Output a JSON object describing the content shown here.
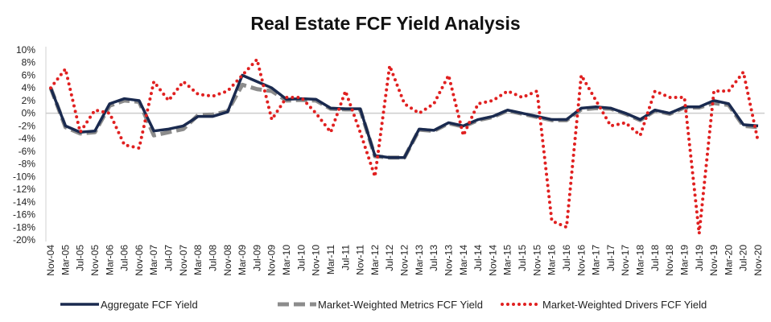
{
  "chart_data": {
    "type": "line",
    "title": "Real Estate FCF Yield Analysis",
    "xlabel": "",
    "ylabel": "",
    "ylim": [
      -20,
      10
    ],
    "y_ticks": [
      "10%",
      "8%",
      "6%",
      "4%",
      "2%",
      "0%",
      "-2%",
      "-4%",
      "-6%",
      "-8%",
      "-10%",
      "-12%",
      "-14%",
      "-16%",
      "-18%",
      "-20%"
    ],
    "grid": false,
    "legend_position": "bottom",
    "x": [
      "Nov-04",
      "Mar-05",
      "Jul-05",
      "Nov-05",
      "Mar-06",
      "Jul-06",
      "Nov-06",
      "Mar-07",
      "Jul-07",
      "Nov-07",
      "Mar-08",
      "Jul-08",
      "Nov-08",
      "Mar-09",
      "Jul-09",
      "Nov-09",
      "Mar-10",
      "Jul-10",
      "Nov-10",
      "Mar-11",
      "Jul-11",
      "Nov-11",
      "Mar-12",
      "Jul-12",
      "Nov-12",
      "Mar-13",
      "Jul-13",
      "Nov-13",
      "Mar-14",
      "Jul-14",
      "Nov-14",
      "Mar-15",
      "Jul-15",
      "Nov-15",
      "Mar-16",
      "Jul-16",
      "Nov-16",
      "Mar-17",
      "Jul-17",
      "Nov-17",
      "Mar-18",
      "Jul-18",
      "Nov-18",
      "Mar-19",
      "Jul-19",
      "Nov-19",
      "Mar-20",
      "Jul-20",
      "Nov-20"
    ],
    "series": [
      {
        "name": "Aggregate FCF Yield",
        "color": "#1a2a4f",
        "style": "solid",
        "values": [
          4,
          -2,
          -3,
          -2.8,
          1.5,
          2.3,
          2,
          -2.8,
          -2.5,
          -2,
          -0.5,
          -0.5,
          0.2,
          6,
          5,
          4,
          2.2,
          2.3,
          2.2,
          0.8,
          0.7,
          0.7,
          -6.7,
          -7,
          -7,
          -2.5,
          -2.7,
          -1.5,
          -2,
          -1,
          -0.5,
          0.5,
          0,
          -0.5,
          -1,
          -1,
          0.8,
          1,
          0.8,
          0,
          -1,
          0.5,
          0,
          1,
          1,
          2,
          1.5,
          -1.8,
          -2
        ]
      },
      {
        "name": "Market-Weighted Metrics FCF Yield",
        "color": "#8c8c8c",
        "style": "dashed",
        "values": [
          4,
          -2.2,
          -3.2,
          -3,
          1.2,
          2,
          1.8,
          -3.5,
          -3,
          -2.5,
          -0.3,
          -0.2,
          0.3,
          4.5,
          3.8,
          3.5,
          2,
          2.1,
          2,
          0.7,
          0.6,
          0.6,
          -6.8,
          -7,
          -7,
          -2.6,
          -2.8,
          -1.6,
          -2.1,
          -1.1,
          -0.6,
          0.4,
          -0.1,
          -0.6,
          -1.1,
          -1.1,
          0.6,
          0.8,
          0.7,
          -0.1,
          -1.1,
          0.4,
          -0.1,
          0.9,
          0.9,
          1.6,
          1.3,
          -2,
          -2.2
        ]
      },
      {
        "name": "Market-Weighted Drivers FCF Yield",
        "color": "#e02020",
        "style": "dotted",
        "values": [
          4,
          7,
          -3,
          0.5,
          0,
          -5,
          -5.5,
          5,
          2,
          5,
          3,
          2.7,
          3.5,
          6,
          8.5,
          -1,
          2.5,
          2.5,
          0,
          -3,
          3.5,
          -3,
          -10,
          7.5,
          1.5,
          0,
          1.5,
          6,
          -3.5,
          1.5,
          2,
          3.5,
          2.5,
          3.5,
          -17,
          -18,
          6,
          2,
          -2,
          -1.5,
          -3.5,
          3.5,
          2.5,
          2.5,
          -19,
          3.5,
          3.5,
          6.5,
          -4.5
        ]
      }
    ]
  }
}
